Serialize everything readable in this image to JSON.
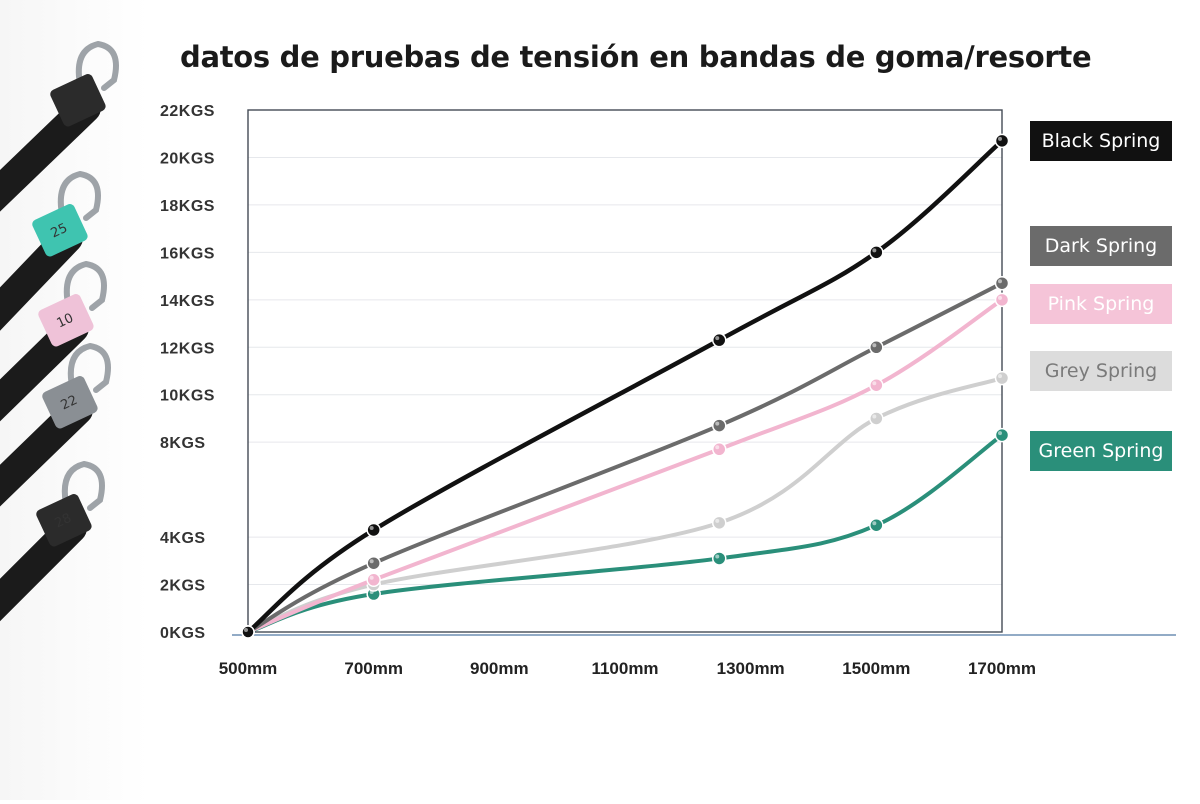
{
  "chart_data": {
    "type": "line",
    "title": "datos de pruebas de tensión en bandas de goma/resorte",
    "xlabel": "",
    "ylabel": "",
    "x_tick_labels": [
      "500mm",
      "700mm",
      "900mm",
      "1100mm",
      "1300mm",
      "1500mm",
      "1700mm"
    ],
    "y_tick_labels": [
      "0KGS",
      "2KGS",
      "4KGS",
      "8KGS",
      "10KGS",
      "12KGS",
      "14KGS",
      "16KGS",
      "18KGS",
      "20KGS",
      "22KGS"
    ],
    "xlim": [
      500,
      1700
    ],
    "ylim": [
      0,
      22
    ],
    "grid": true,
    "legend_position": "right",
    "series": [
      {
        "name": "Black Spring",
        "color": "#111111",
        "legend_text_color": "#ffffff",
        "legend_bg": "#111111",
        "x": [
          500,
          700,
          1250,
          1500,
          1700
        ],
        "y": [
          0,
          4.3,
          12.3,
          16,
          20.7
        ]
      },
      {
        "name": "Dark Spring",
        "color": "#6b6b6b",
        "legend_text_color": "#ffffff",
        "legend_bg": "#6b6b6b",
        "x": [
          500,
          700,
          1250,
          1500,
          1700
        ],
        "y": [
          0,
          2.9,
          8.7,
          12,
          14.7
        ]
      },
      {
        "name": "Pink Spring",
        "color": "#f2b5cf",
        "legend_text_color": "#ffffff",
        "legend_bg": "#f5c4d8",
        "x": [
          500,
          700,
          1250,
          1500,
          1700
        ],
        "y": [
          0,
          2.2,
          7.7,
          10.4,
          14
        ]
      },
      {
        "name": "Grey Spring",
        "color": "#cfcfcf",
        "legend_text_color": "#7a7a7a",
        "legend_bg": "#dcdcdc",
        "x": [
          500,
          700,
          1250,
          1500,
          1700
        ],
        "y": [
          0,
          2,
          4.6,
          9,
          10.7
        ]
      },
      {
        "name": "Green Spring",
        "color": "#2a8f7a",
        "legend_text_color": "#ffffff",
        "legend_bg": "#2a8f7a",
        "x": [
          500,
          700,
          1250,
          1500,
          1700
        ],
        "y": [
          0,
          1.6,
          3.1,
          4.5,
          8.3
        ]
      }
    ]
  },
  "bands": [
    {
      "tag": "",
      "tag_color": "#2b2b2b"
    },
    {
      "tag": "25",
      "tag_color": "#3fc4b0"
    },
    {
      "tag": "10",
      "tag_color": "#efc2d8"
    },
    {
      "tag": "22",
      "tag_color": "#8a8f94"
    },
    {
      "tag": "28",
      "tag_color": "#2b2b2b"
    }
  ]
}
